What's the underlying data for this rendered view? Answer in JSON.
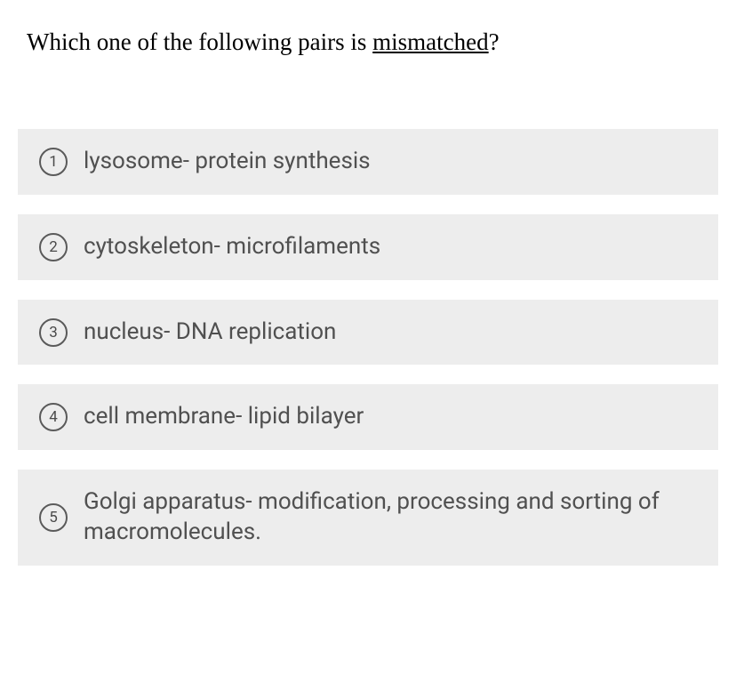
{
  "question": {
    "prefix": "Which one of the following pairs is ",
    "underlined": "mismatched",
    "suffix": "?"
  },
  "options": [
    {
      "number": "1",
      "text": "lysosome- protein synthesis"
    },
    {
      "number": "2",
      "text": "cytoskeleton- microfilaments"
    },
    {
      "number": "3",
      "text": "nucleus- DNA replication"
    },
    {
      "number": "4",
      "text": "cell membrane- lipid bilayer"
    },
    {
      "number": "5",
      "text": "Golgi apparatus- modification, processing and sorting of macromolecules."
    }
  ],
  "styles": {
    "option_bg": "#ededed",
    "option_text_color": "#505050",
    "circle_border_color": "#5a5a5a",
    "question_text_color": "#000000",
    "body_bg": "#ffffff",
    "question_fontsize": 27,
    "option_fontsize": 26
  }
}
